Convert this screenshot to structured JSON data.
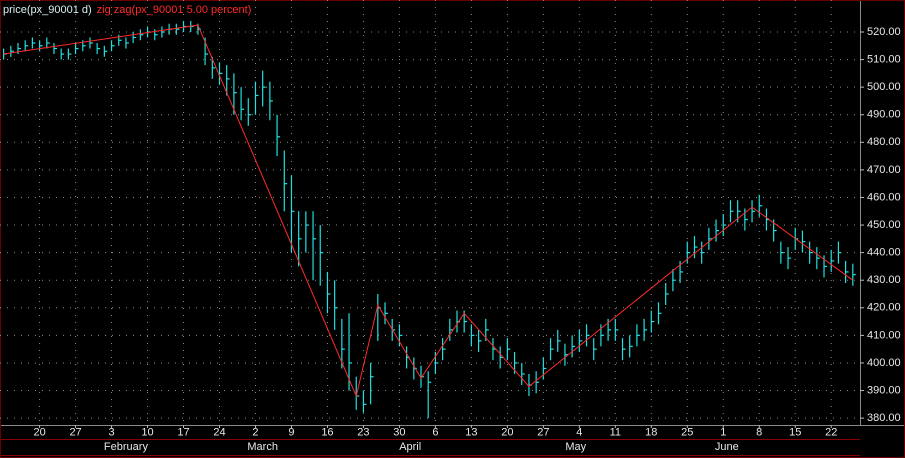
{
  "chart_data": {
    "type": "ohlc",
    "series": [
      {
        "name": "price(px_90001 d)",
        "color": "#20e0e0",
        "high": [
          514,
          515,
          516,
          517,
          518,
          517,
          518,
          516,
          514,
          514,
          516,
          517,
          518,
          516,
          515,
          517,
          519,
          518,
          520,
          521,
          522,
          521,
          522,
          523,
          523,
          524,
          524,
          523,
          518,
          511,
          509,
          508,
          505,
          500,
          496,
          502,
          506,
          502,
          490,
          477,
          468,
          455,
          455,
          455,
          450,
          433,
          430,
          416,
          418,
          395,
          390,
          400,
          425,
          422,
          416,
          414,
          406,
          402,
          399,
          397,
          404,
          409,
          416,
          419,
          419,
          414,
          412,
          416,
          409,
          406,
          409,
          404,
          400,
          396,
          397,
          402,
          409,
          412,
          407,
          410,
          412,
          414,
          409,
          414,
          416,
          416,
          409,
          410,
          414,
          416,
          419,
          422,
          429,
          434,
          437,
          444,
          446,
          444,
          449,
          452,
          454,
          459,
          459,
          456,
          459,
          461,
          456,
          452,
          444,
          442,
          449,
          448,
          444,
          442,
          439,
          441,
          444,
          437,
          436
        ],
        "low": [
          510,
          511,
          512,
          513,
          514,
          513,
          514,
          512,
          510,
          510,
          512,
          513,
          514,
          512,
          511,
          513,
          515,
          514,
          516,
          517,
          518,
          517,
          518,
          519,
          519,
          520,
          520,
          519,
          508,
          503,
          501,
          497,
          490,
          488,
          486,
          490,
          493,
          488,
          475,
          455,
          440,
          435,
          440,
          430,
          428,
          418,
          412,
          398,
          390,
          383,
          382,
          385,
          408,
          414,
          408,
          406,
          398,
          394,
          391,
          380,
          396,
          401,
          408,
          411,
          411,
          406,
          404,
          408,
          401,
          398,
          401,
          396,
          392,
          388,
          389,
          394,
          401,
          404,
          399,
          402,
          404,
          406,
          401,
          406,
          408,
          408,
          401,
          402,
          406,
          408,
          411,
          414,
          421,
          426,
          429,
          436,
          438,
          436,
          441,
          444,
          446,
          451,
          451,
          448,
          451,
          453,
          448,
          444,
          436,
          434,
          441,
          440,
          436,
          434,
          431,
          433,
          436,
          429,
          428
        ],
        "close": [
          512,
          513,
          514,
          515,
          516,
          515,
          516,
          514,
          512,
          512,
          514,
          515,
          516,
          514,
          513,
          515,
          517,
          516,
          518,
          519,
          520,
          519,
          520,
          521,
          521,
          522,
          522,
          521,
          512,
          507,
          505,
          503,
          498,
          492,
          490,
          497,
          500,
          495,
          482,
          465,
          455,
          445,
          450,
          445,
          440,
          425,
          420,
          405,
          400,
          388,
          385,
          395,
          420,
          418,
          412,
          410,
          402,
          398,
          395,
          393,
          400,
          405,
          412,
          415,
          415,
          410,
          408,
          412,
          405,
          402,
          405,
          400,
          396,
          392,
          393,
          398,
          405,
          408,
          403,
          406,
          408,
          410,
          405,
          410,
          412,
          412,
          405,
          406,
          410,
          412,
          415,
          418,
          425,
          430,
          433,
          440,
          442,
          440,
          445,
          448,
          450,
          455,
          455,
          452,
          455,
          457,
          452,
          448,
          440,
          438,
          445,
          444,
          440,
          438,
          435,
          437,
          440,
          433,
          432
        ]
      },
      {
        "name": "zig zag(px_90001 5.00 percent)",
        "color": "#ff2a2a",
        "type": "line",
        "x": [
          0,
          27,
          49,
          52,
          58,
          64,
          73,
          104,
          118
        ],
        "values": [
          512,
          522.5,
          388,
          421,
          394.5,
          418,
          391.5,
          456.5,
          430
        ]
      }
    ],
    "xlim": [
      -0.5,
      119
    ],
    "xticks": [
      {
        "value": 5,
        "label": "20"
      },
      {
        "value": 10,
        "label": "27"
      },
      {
        "value": 15,
        "label": "3"
      },
      {
        "value": 20,
        "label": "10"
      },
      {
        "value": 25,
        "label": "17"
      },
      {
        "value": 30,
        "label": "24"
      },
      {
        "value": 35,
        "label": "2"
      },
      {
        "value": 40,
        "label": "9"
      },
      {
        "value": 45,
        "label": "16"
      },
      {
        "value": 50,
        "label": "23"
      },
      {
        "value": 55,
        "label": "30"
      },
      {
        "value": 60,
        "label": "6"
      },
      {
        "value": 65,
        "label": "13"
      },
      {
        "value": 70,
        "label": "20"
      },
      {
        "value": 75,
        "label": "27"
      },
      {
        "value": 80,
        "label": "4"
      },
      {
        "value": 85,
        "label": "11"
      },
      {
        "value": 90,
        "label": "18"
      },
      {
        "value": 95,
        "label": "25"
      },
      {
        "value": 100,
        "label": "1"
      },
      {
        "value": 105,
        "label": "8"
      },
      {
        "value": 110,
        "label": "15"
      },
      {
        "value": 115,
        "label": "22"
      }
    ],
    "month_ticks": [
      {
        "value": 17,
        "label": "February"
      },
      {
        "value": 36,
        "label": "March"
      },
      {
        "value": 56.5,
        "label": "April"
      },
      {
        "value": 79.5,
        "label": "May"
      },
      {
        "value": 100.5,
        "label": "June"
      }
    ],
    "ylim": [
      377.5,
      531.6
    ],
    "yticks": [
      {
        "value": 380,
        "label": "380.00"
      },
      {
        "value": 390,
        "label": "390.00"
      },
      {
        "value": 400,
        "label": "400.00"
      },
      {
        "value": 410,
        "label": "410.00"
      },
      {
        "value": 420,
        "label": "420.00"
      },
      {
        "value": 430,
        "label": "430.00"
      },
      {
        "value": 440,
        "label": "440.00"
      },
      {
        "value": 450,
        "label": "450.00"
      },
      {
        "value": 460,
        "label": "460.00"
      },
      {
        "value": 470,
        "label": "470.00"
      },
      {
        "value": 480,
        "label": "480.00"
      },
      {
        "value": 490,
        "label": "490.00"
      },
      {
        "value": 500,
        "label": "500.00"
      },
      {
        "value": 510,
        "label": "510.00"
      },
      {
        "value": 520,
        "label": "520.00"
      }
    ],
    "grid": true
  }
}
